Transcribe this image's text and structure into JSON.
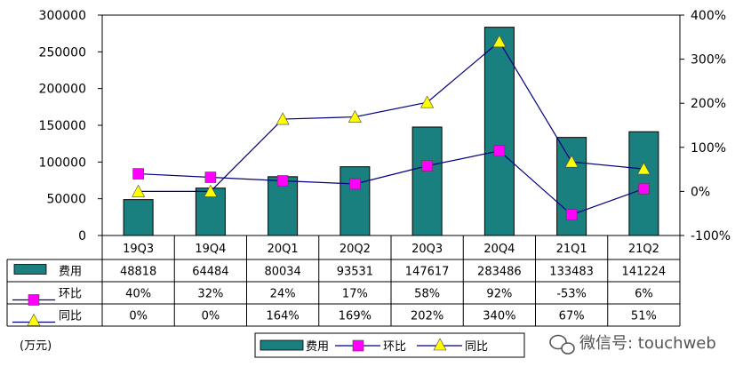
{
  "chart_data": {
    "type": "bar",
    "categories": [
      "19Q3",
      "19Q4",
      "20Q1",
      "20Q2",
      "20Q3",
      "20Q4",
      "21Q1",
      "21Q2"
    ],
    "series": [
      {
        "name": "费用",
        "type": "bar",
        "axis": "left",
        "color": "#1a7f7f",
        "values": [
          48818,
          64484,
          80034,
          93531,
          147617,
          283486,
          133483,
          141224
        ]
      },
      {
        "name": "环比",
        "type": "line",
        "axis": "right",
        "color": "#ff00ff",
        "marker": "square",
        "values": [
          40,
          32,
          24,
          17,
          58,
          92,
          -53,
          6
        ],
        "labels": [
          "40%",
          "32%",
          "24%",
          "17%",
          "58%",
          "92%",
          "-53%",
          "6%"
        ]
      },
      {
        "name": "同比",
        "type": "line",
        "axis": "right",
        "color": "#ffff00",
        "marker": "triangle",
        "values": [
          0,
          0,
          164,
          169,
          202,
          340,
          67,
          51
        ],
        "labels": [
          "0%",
          "0%",
          "164%",
          "169%",
          "202%",
          "340%",
          "67%",
          "51%"
        ]
      }
    ],
    "left_axis": {
      "ylim": [
        0,
        300000
      ],
      "ticks": [
        "0",
        "50000",
        "100000",
        "150000",
        "200000",
        "250000",
        "300000"
      ]
    },
    "right_axis": {
      "ylim": [
        -100,
        400
      ],
      "ticks": [
        "-100%",
        "0%",
        "100%",
        "200%",
        "300%",
        "400%"
      ]
    },
    "unit": "(万元)",
    "legend": {
      "placement": "bottom",
      "items": [
        "费用",
        "环比",
        "同比"
      ]
    },
    "table_row_labels": [
      "费用",
      "环比",
      "同比"
    ],
    "grid": false
  },
  "watermark": {
    "text": "微信号: touchweb",
    "icon": "wechat-icon"
  }
}
